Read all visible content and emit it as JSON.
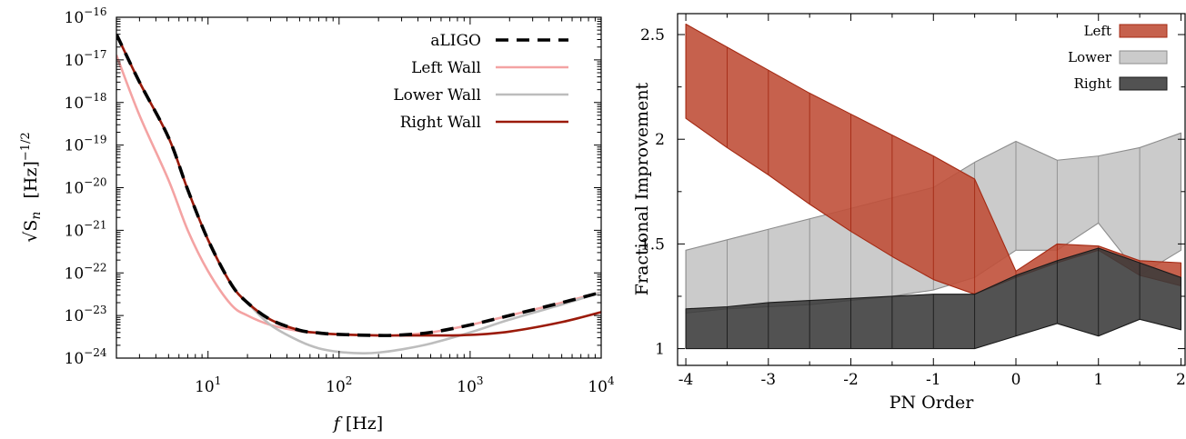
{
  "chart_data": [
    {
      "type": "line",
      "xlabel_italic": "f",
      "xlabel_unit": "[Hz]",
      "ylabel_symbol": "√S",
      "ylabel_subscript": "n",
      "ylabel_unit": "[Hz]",
      "ylabel_exponent": "−1/2",
      "xscale": "log",
      "yscale": "log",
      "xlim": [
        2,
        10000
      ],
      "ylim": [
        1e-24,
        1e-16
      ],
      "x_ticks": [
        {
          "value": 10,
          "base": "10",
          "exp": "1"
        },
        {
          "value": 100,
          "base": "10",
          "exp": "2"
        },
        {
          "value": 1000,
          "base": "10",
          "exp": "3"
        },
        {
          "value": 10000,
          "base": "10",
          "exp": "4"
        }
      ],
      "y_ticks": [
        {
          "value": 1e-24,
          "base": "10",
          "exp": "−24"
        },
        {
          "value": 1e-23,
          "base": "10",
          "exp": "−23"
        },
        {
          "value": 1e-22,
          "base": "10",
          "exp": "−22"
        },
        {
          "value": 1e-21,
          "base": "10",
          "exp": "−21"
        },
        {
          "value": 1e-20,
          "base": "10",
          "exp": "−20"
        },
        {
          "value": 1e-19,
          "base": "10",
          "exp": "−19"
        },
        {
          "value": 1e-18,
          "base": "10",
          "exp": "−18"
        },
        {
          "value": 1e-17,
          "base": "10",
          "exp": "−17"
        },
        {
          "value": 1e-16,
          "base": "10",
          "exp": "−16"
        }
      ],
      "legend_position": "top-right",
      "series": [
        {
          "name": "aLIGO",
          "color": "#000000",
          "style": "dashed",
          "x": [
            2,
            3,
            5,
            7,
            10,
            15,
            20,
            30,
            50,
            70,
            100,
            200,
            300,
            500,
            1000,
            2000,
            5000,
            10000
          ],
          "y": [
            4e-17,
            3e-18,
            1.5e-19,
            9e-21,
            6e-22,
            5.5e-23,
            2e-23,
            8e-24,
            4.5e-24,
            3.9e-24,
            3.6e-24,
            3.4e-24,
            3.5e-24,
            4e-24,
            6e-24,
            1e-23,
            2e-23,
            3.5e-23
          ]
        },
        {
          "name": "Left Wall",
          "color": "#f4a3a3",
          "style": "solid",
          "x": [
            2,
            3,
            5,
            7,
            10,
            15,
            20,
            30,
            50,
            70,
            100,
            200,
            300,
            500,
            1000,
            2000,
            5000,
            10000
          ],
          "y": [
            1.3e-17,
            5e-19,
            1.5e-20,
            1e-21,
            1.1e-22,
            1.8e-23,
            1e-23,
            6e-24,
            4.3e-24,
            3.9e-24,
            3.6e-24,
            3.4e-24,
            3.5e-24,
            4e-24,
            6e-24,
            1e-23,
            2e-23,
            3.5e-23
          ]
        },
        {
          "name": "Lower Wall",
          "color": "#bdbdbd",
          "style": "solid",
          "x": [
            2,
            3,
            5,
            7,
            10,
            15,
            20,
            30,
            50,
            70,
            100,
            150,
            200,
            300,
            500,
            1000,
            2000,
            5000,
            10000
          ],
          "y": [
            4e-17,
            3e-18,
            1.5e-19,
            9e-21,
            6e-22,
            5.5e-23,
            2e-23,
            6e-24,
            2.5e-24,
            1.7e-24,
            1.4e-24,
            1.3e-24,
            1.35e-24,
            1.6e-24,
            2.2e-24,
            4e-24,
            8e-24,
            1.8e-23,
            3.5e-23
          ]
        },
        {
          "name": "Right Wall",
          "color": "#9b1a0a",
          "style": "solid",
          "x": [
            2,
            3,
            5,
            7,
            10,
            15,
            20,
            30,
            50,
            70,
            100,
            200,
            300,
            500,
            1000,
            2000,
            5000,
            10000
          ],
          "y": [
            4e-17,
            3e-18,
            1.5e-19,
            9e-21,
            6e-22,
            5.5e-23,
            2e-23,
            8e-24,
            4.5e-24,
            3.9e-24,
            3.6e-24,
            3.4e-24,
            3.4e-24,
            3.4e-24,
            3.5e-24,
            4.2e-24,
            7e-24,
            1.2e-23
          ]
        }
      ]
    },
    {
      "type": "area",
      "xlabel": "PN Order",
      "ylabel": "Fractional Improvement",
      "xlim": [
        -4.1,
        2.05
      ],
      "ylim": [
        0.92,
        2.6
      ],
      "x_ticks": [
        -4,
        -3,
        -2,
        -1,
        0,
        1,
        2
      ],
      "y_ticks": [
        {
          "value": 1,
          "label": "1"
        },
        {
          "value": 1.5,
          "label": "1.5"
        },
        {
          "value": 2,
          "label": "2"
        },
        {
          "value": 2.5,
          "label": "2.5"
        }
      ],
      "legend_position": "top-right",
      "series": [
        {
          "name": "Lower",
          "fill": "#bdbdbd",
          "edge": "#8c8c8c",
          "fill_opacity": 0.78,
          "x": [
            -4,
            -3.5,
            -3,
            -2.5,
            -2,
            -1.5,
            -1,
            -0.5,
            0,
            0.5,
            1,
            1.5,
            2
          ],
          "upper": [
            1.47,
            1.52,
            1.57,
            1.62,
            1.67,
            1.72,
            1.77,
            1.89,
            1.99,
            1.9,
            1.92,
            1.96,
            2.03
          ],
          "lower": [
            1.17,
            1.19,
            1.2,
            1.21,
            1.23,
            1.25,
            1.28,
            1.34,
            1.47,
            1.47,
            1.6,
            1.35,
            1.47
          ]
        },
        {
          "name": "Left",
          "fill": "#c0503a",
          "edge": "#a42a14",
          "fill_opacity": 0.9,
          "x": [
            -4,
            -3.5,
            -3,
            -2.5,
            -2,
            -1.5,
            -1,
            -0.5,
            0,
            0.5,
            1,
            1.5,
            2
          ],
          "upper": [
            2.55,
            2.44,
            2.33,
            2.22,
            2.12,
            2.02,
            1.92,
            1.81,
            1.37,
            1.5,
            1.49,
            1.42,
            1.41
          ],
          "lower": [
            2.1,
            1.96,
            1.83,
            1.69,
            1.56,
            1.44,
            1.33,
            1.26,
            1.34,
            1.41,
            1.47,
            1.35,
            1.3
          ]
        },
        {
          "name": "Right",
          "fill": "#3a3a3a",
          "edge": "#1a1a1a",
          "fill_opacity": 0.88,
          "x": [
            -4,
            -3.5,
            -3,
            -2.5,
            -2,
            -1.5,
            -1,
            -0.5,
            0,
            0.5,
            1,
            1.5,
            2
          ],
          "upper": [
            1.19,
            1.2,
            1.22,
            1.23,
            1.24,
            1.25,
            1.26,
            1.26,
            1.35,
            1.42,
            1.48,
            1.41,
            1.34
          ],
          "lower": [
            1.0,
            1.0,
            1.0,
            1.0,
            1.0,
            1.0,
            1.0,
            1.0,
            1.06,
            1.12,
            1.06,
            1.14,
            1.09
          ]
        }
      ]
    }
  ]
}
